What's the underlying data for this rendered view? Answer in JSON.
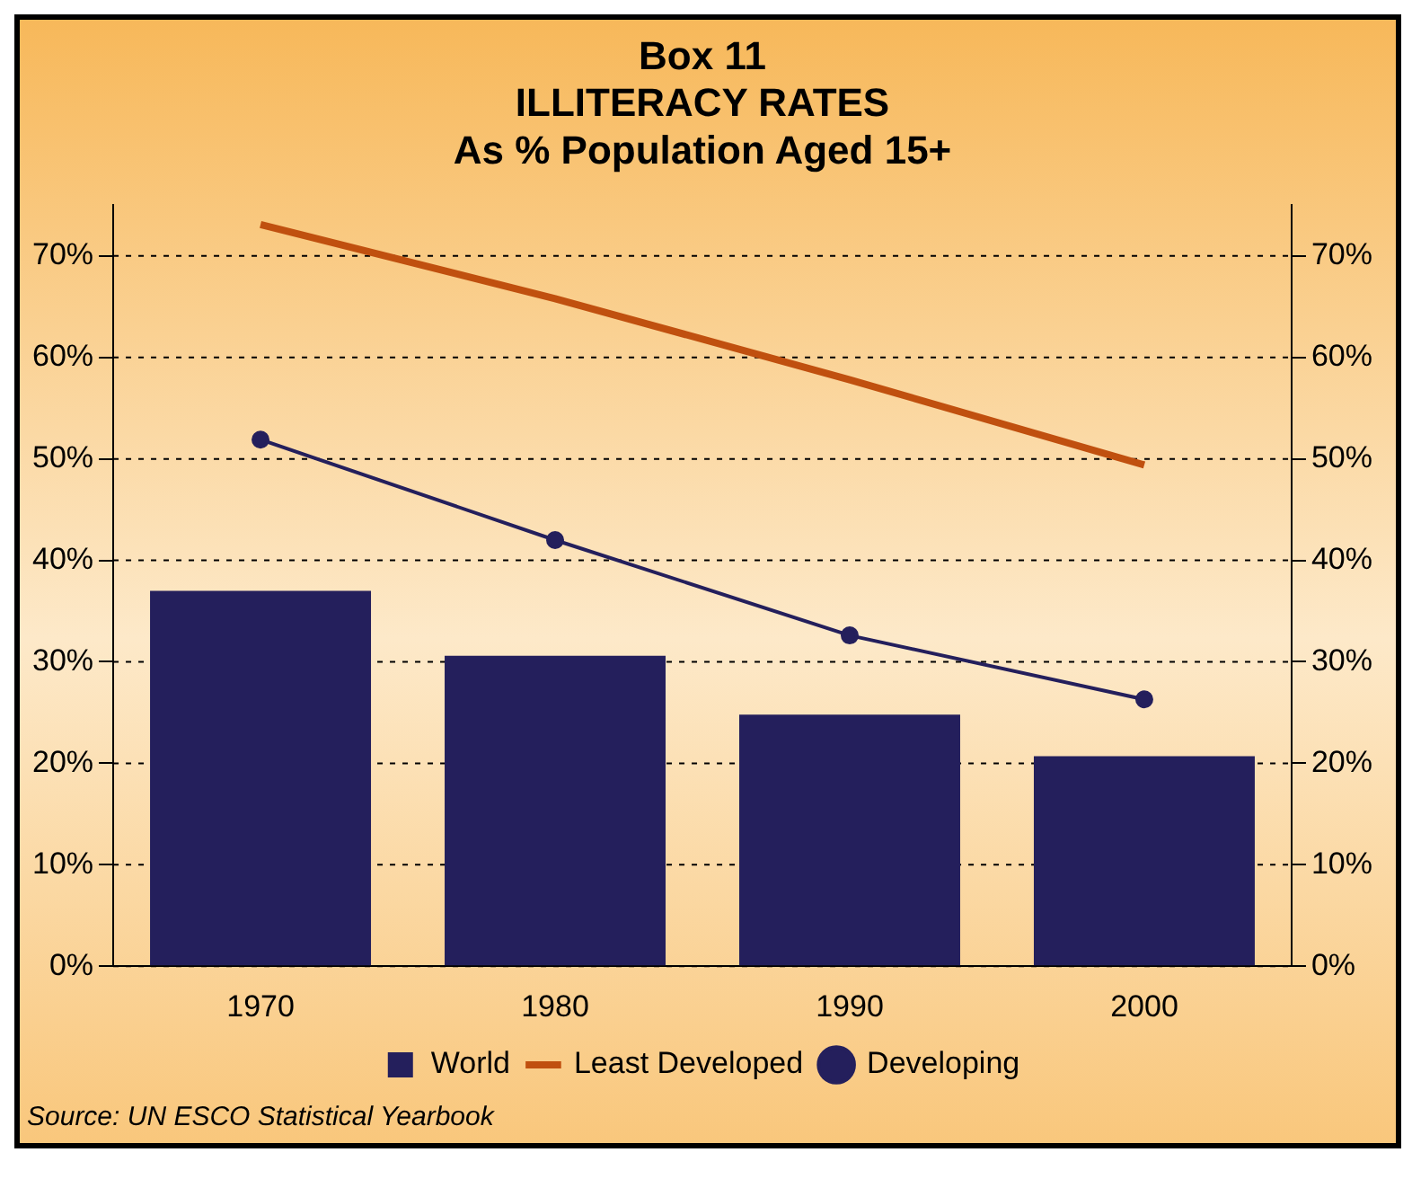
{
  "chart_data": {
    "type": "bar",
    "title": "Box 11\nILLITERACY RATES\nAs % Population Aged 15+",
    "categories": [
      "1970",
      "1980",
      "1990",
      "2000"
    ],
    "series": [
      {
        "name": "World",
        "color": "#241f5c",
        "values": [
          37,
          30.6,
          24.8,
          20.7
        ]
      },
      {
        "name": "Least Developed",
        "type": "line",
        "color": "#c0500f",
        "marker": "none",
        "values": [
          73.1,
          65.8,
          57.8,
          49.4
        ]
      },
      {
        "name": "Developing",
        "type": "line",
        "color": "#241f5c",
        "marker": "circle",
        "values": [
          51.9,
          42,
          32.6,
          26.3
        ]
      }
    ],
    "ylim": [
      0,
      75
    ],
    "yticks": [
      {
        "value": 0,
        "label": "0%"
      },
      {
        "value": 10,
        "label": "10%"
      },
      {
        "value": 20,
        "label": "20%"
      },
      {
        "value": 30,
        "label": "30%"
      },
      {
        "value": 40,
        "label": "40%"
      },
      {
        "value": 50,
        "label": "50%"
      },
      {
        "value": 60,
        "label": "60%"
      },
      {
        "value": 70,
        "label": "70%"
      }
    ],
    "y2lim": [
      0,
      75
    ],
    "y2ticks": [
      {
        "value": 0,
        "label": "0%"
      },
      {
        "value": 10,
        "label": "10%"
      },
      {
        "value": 20,
        "label": "20%"
      },
      {
        "value": 30,
        "label": "30%"
      },
      {
        "value": 40,
        "label": "40%"
      },
      {
        "value": 50,
        "label": "50%"
      },
      {
        "value": 60,
        "label": "60%"
      },
      {
        "value": 70,
        "label": "70%"
      }
    ],
    "grid": "y",
    "legend": "bottom",
    "line_style": "solid",
    "annotations": [
      "Source: UN ESCO Statistical Yearbook"
    ]
  }
}
